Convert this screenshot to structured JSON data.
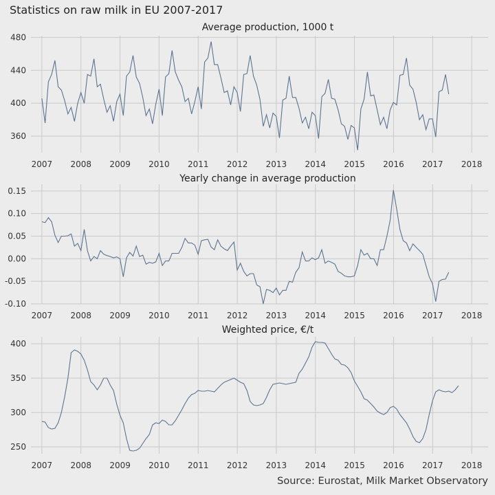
{
  "figure": {
    "title": "Statistics on raw milk in EU 2007-2017",
    "source": "Source: Eurostat, Milk Market Observatory"
  },
  "colors": {
    "background": "#ececec",
    "grid": "#c9c9c9",
    "line": "#5b7390"
  },
  "chart_data": [
    {
      "type": "line",
      "title": "Average production, 1000 t",
      "xlabel": "",
      "ylabel": "",
      "xlim": [
        2006.72,
        2018.42
      ],
      "ylim": [
        340,
        482
      ],
      "xticks": [
        2007,
        2008,
        2009,
        2010,
        2011,
        2012,
        2013,
        2014,
        2015,
        2016,
        2017,
        2018
      ],
      "yticks": [
        360,
        400,
        440,
        480
      ],
      "ytick_labels": [
        "360",
        "400",
        "440",
        "480"
      ],
      "grid": true,
      "x_start": 2007.0,
      "x_step": 0.0833,
      "series": [
        {
          "values": [
            406,
            376,
            426,
            435,
            452,
            420,
            416,
            403,
            387,
            395,
            378,
            400,
            413,
            400,
            435,
            433,
            454,
            420,
            423,
            405,
            389,
            397,
            378,
            402,
            411,
            385,
            433,
            438,
            458,
            432,
            424,
            407,
            385,
            393,
            375,
            399,
            417,
            385,
            432,
            436,
            464,
            438,
            428,
            420,
            402,
            406,
            387,
            402,
            420,
            393,
            450,
            455,
            475,
            447,
            447,
            431,
            413,
            415,
            398,
            420,
            413,
            390,
            435,
            436,
            458,
            433,
            422,
            405,
            372,
            386,
            370,
            388,
            384,
            358,
            404,
            406,
            433,
            407,
            407,
            394,
            376,
            383,
            369,
            389,
            385,
            357,
            408,
            412,
            429,
            406,
            405,
            392,
            375,
            372,
            356,
            373,
            370,
            343,
            393,
            405,
            438,
            409,
            410,
            392,
            374,
            383,
            369,
            392,
            401,
            398,
            434,
            435,
            455,
            422,
            417,
            401,
            380,
            386,
            368,
            381,
            381,
            359,
            414,
            416,
            435,
            411
          ]
        }
      ]
    },
    {
      "type": "line",
      "title": "Yearly change in average production",
      "xlabel": "",
      "ylabel": "",
      "xlim": [
        2006.72,
        2018.42
      ],
      "ylim": [
        -0.1,
        0.165
      ],
      "xticks": [
        2007,
        2008,
        2009,
        2010,
        2011,
        2012,
        2013,
        2014,
        2015,
        2016,
        2017,
        2018
      ],
      "yticks": [
        -0.1,
        -0.05,
        0.0,
        0.05,
        0.1,
        0.15
      ],
      "ytick_labels": [
        "-0.10",
        "-0.05",
        "0.00",
        "0.05",
        "0.10",
        "0.15"
      ],
      "grid": true,
      "x_start": 2007.0,
      "x_step": 0.0833,
      "series": [
        {
          "values": [
            0.082,
            0.08,
            0.091,
            0.082,
            0.052,
            0.036,
            0.05,
            0.05,
            0.051,
            0.055,
            0.028,
            0.034,
            0.018,
            0.065,
            0.018,
            -0.005,
            0.005,
            0.0,
            0.018,
            0.01,
            0.007,
            0.005,
            0.002,
            0.004,
            0.0,
            -0.04,
            0.002,
            0.014,
            0.006,
            0.028,
            0.005,
            0.008,
            -0.012,
            -0.008,
            -0.01,
            -0.007,
            0.012,
            -0.015,
            -0.005,
            -0.005,
            0.012,
            0.012,
            0.012,
            0.025,
            0.045,
            0.035,
            0.035,
            0.03,
            0.01,
            0.04,
            0.042,
            0.043,
            0.026,
            0.02,
            0.042,
            0.028,
            0.022,
            0.018,
            0.028,
            0.037,
            -0.025,
            -0.01,
            -0.028,
            -0.038,
            -0.033,
            -0.033,
            -0.058,
            -0.062,
            -0.1,
            -0.068,
            -0.07,
            -0.075,
            -0.065,
            -0.08,
            -0.07,
            -0.07,
            -0.05,
            -0.052,
            -0.03,
            -0.02,
            0.015,
            -0.005,
            -0.005,
            0.002,
            -0.002,
            0.002,
            0.02,
            -0.01,
            -0.005,
            -0.008,
            -0.012,
            -0.028,
            -0.032,
            -0.038,
            -0.04,
            -0.04,
            -0.038,
            -0.015,
            0.02,
            0.008,
            0.012,
            0.0,
            0.0,
            -0.015,
            0.02,
            0.02,
            0.05,
            0.085,
            0.152,
            0.11,
            0.065,
            0.04,
            0.035,
            0.018,
            0.033,
            0.025,
            0.018,
            0.01,
            -0.015,
            -0.04,
            -0.055,
            -0.095,
            -0.05,
            -0.046,
            -0.045,
            -0.03
          ]
        }
      ]
    },
    {
      "type": "line",
      "title": "Weighted price, €/t",
      "xlabel": "",
      "ylabel": "",
      "xlim": [
        2006.72,
        2018.42
      ],
      "ylim": [
        240,
        410
      ],
      "xticks": [
        2007,
        2008,
        2009,
        2010,
        2011,
        2012,
        2013,
        2014,
        2015,
        2016,
        2017,
        2018
      ],
      "yticks": [
        250,
        300,
        350,
        400
      ],
      "ytick_labels": [
        "250",
        "300",
        "350",
        "400"
      ],
      "grid": true,
      "x_start": 2007.0,
      "x_step": 0.0833,
      "series": [
        {
          "values": [
            287,
            286,
            278,
            276,
            277,
            285,
            300,
            323,
            350,
            387,
            391,
            389,
            385,
            376,
            362,
            345,
            340,
            333,
            340,
            350,
            350,
            340,
            332,
            312,
            296,
            285,
            262,
            245,
            244,
            245,
            248,
            255,
            262,
            268,
            282,
            285,
            284,
            289,
            287,
            282,
            282,
            288,
            296,
            304,
            313,
            321,
            326,
            328,
            332,
            331,
            331,
            332,
            331,
            330,
            335,
            340,
            344,
            346,
            348,
            350,
            347,
            344,
            342,
            332,
            316,
            311,
            310,
            311,
            313,
            322,
            333,
            341,
            342,
            343,
            342,
            341,
            342,
            343,
            344,
            357,
            363,
            372,
            381,
            395,
            403,
            402,
            402,
            401,
            393,
            385,
            378,
            376,
            370,
            369,
            365,
            358,
            346,
            338,
            330,
            320,
            318,
            313,
            308,
            302,
            299,
            297,
            300,
            307,
            309,
            305,
            297,
            291,
            285,
            276,
            265,
            258,
            256,
            262,
            275,
            297,
            317,
            330,
            333,
            331,
            330,
            331,
            329,
            333,
            339
          ]
        }
      ]
    }
  ]
}
